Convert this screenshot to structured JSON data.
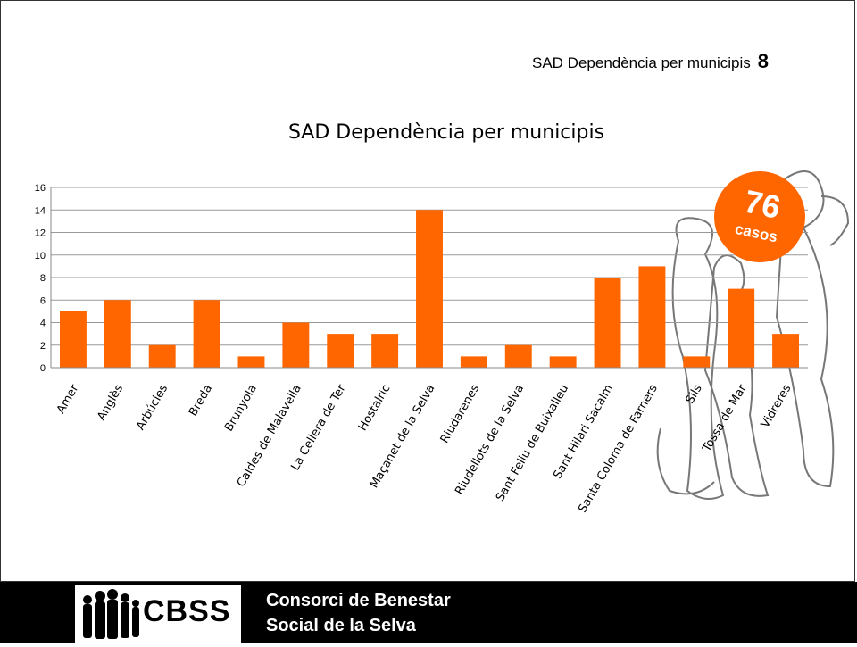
{
  "header": {
    "title": "SAD Dependència per municipis",
    "page_number": "8"
  },
  "badge": {
    "number": "76",
    "label": "casos"
  },
  "footer": {
    "logo_text": "CBSS",
    "org_line1": "Consorci de Benestar",
    "org_line2": "Social de la Selva"
  },
  "colors": {
    "bar": "#ff6600",
    "badge": "#ff6600",
    "footer_bg": "#000000"
  },
  "chart_data": {
    "type": "bar",
    "title": "SAD Dependència per municipis",
    "categories": [
      "Amer",
      "Anglès",
      "Arbúcies",
      "Breda",
      "Brunyola",
      "Caldes de Malavella",
      "La Cellera de Ter",
      "Hostalric",
      "Maçanet de la Selva",
      "Riudarenes",
      "Riudellots de la Selva",
      "Sant Feliu de Buixalleu",
      "Sant Hilari Sacalm",
      "Santa Coloma de Farners",
      "Sils",
      "Tossa de Mar",
      "Vidreres"
    ],
    "values": [
      5,
      6,
      2,
      6,
      1,
      4,
      3,
      3,
      14,
      1,
      2,
      1,
      8,
      9,
      1,
      7,
      3
    ],
    "ylim": [
      0,
      16
    ],
    "yticks": [
      "0",
      "2",
      "4",
      "6",
      "8",
      "10",
      "12",
      "14",
      "16"
    ],
    "grid": true,
    "legend": "none"
  }
}
